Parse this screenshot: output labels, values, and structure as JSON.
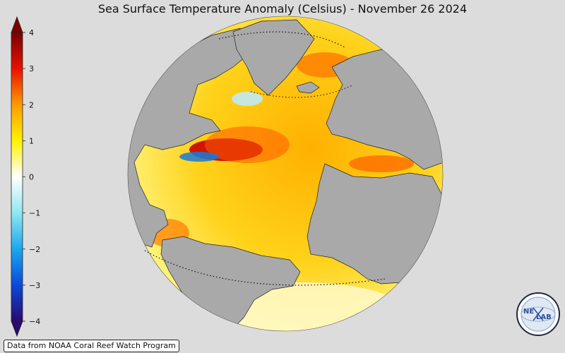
{
  "title": "Sea Surface Temperature Anomaly (Celsius) - November 26 2024",
  "colorbar": {
    "min": -4,
    "max": 4,
    "ticks": [
      {
        "value": 4,
        "label": "4"
      },
      {
        "value": 3,
        "label": "3"
      },
      {
        "value": 2,
        "label": "2"
      },
      {
        "value": 1,
        "label": "1"
      },
      {
        "value": 0,
        "label": "0"
      },
      {
        "value": -1,
        "label": "−1"
      },
      {
        "value": -2,
        "label": "−2"
      },
      {
        "value": -3,
        "label": "−3"
      },
      {
        "value": -4,
        "label": "−4"
      }
    ],
    "color_stops": [
      {
        "value": -4,
        "color": "#2a0a6e"
      },
      {
        "value": -3,
        "color": "#0a4ad8"
      },
      {
        "value": -2,
        "color": "#1aa8f0"
      },
      {
        "value": -1,
        "color": "#8ee8f0"
      },
      {
        "value": 0,
        "color": "#ffffff"
      },
      {
        "value": 1,
        "color": "#fff200"
      },
      {
        "value": 2,
        "color": "#ff9a00"
      },
      {
        "value": 3,
        "color": "#e81000"
      },
      {
        "value": 4,
        "color": "#7a0000"
      }
    ],
    "extend": "both"
  },
  "colors": {
    "background": "#dcdcdc",
    "land": "#a9a9a9",
    "ocean_typical": "#ffc21a"
  },
  "credit": "Data from NOAA Coral Reef Watch Program",
  "logo": {
    "text_left": "NE",
    "text_right": "LAB",
    "icon": "nexlab-globe-logo"
  }
}
